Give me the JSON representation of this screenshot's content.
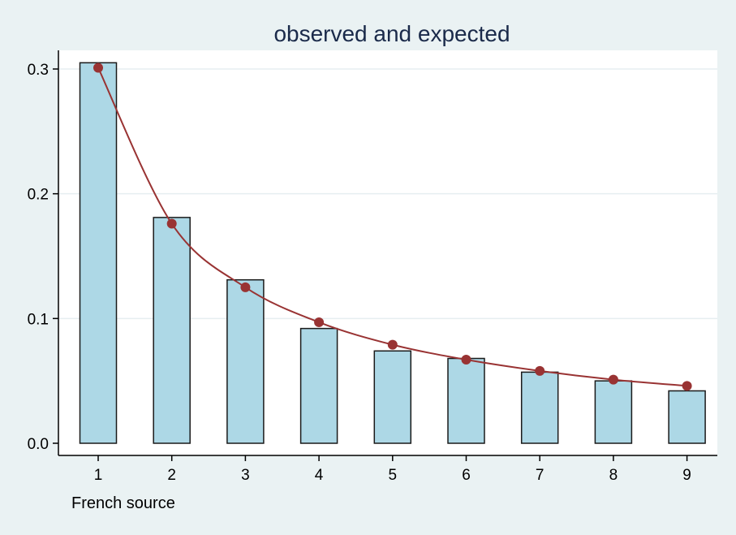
{
  "chart_data": {
    "type": "bar",
    "title": "observed and expected",
    "xlabel": "French source",
    "ylabel": "",
    "categories": [
      "1",
      "2",
      "3",
      "4",
      "5",
      "6",
      "7",
      "8",
      "9"
    ],
    "ylim": [
      0,
      0.3
    ],
    "y_ticks": [
      "0.0",
      "0.1",
      "0.2",
      "0.3"
    ],
    "grid": true,
    "legend": "none",
    "series": [
      {
        "type": "bar",
        "values": [
          0.305,
          0.181,
          0.131,
          0.092,
          0.074,
          0.068,
          0.057,
          0.05,
          0.042
        ],
        "color": "#add8e6"
      },
      {
        "type": "line",
        "values": [
          0.301,
          0.176,
          0.125,
          0.097,
          0.079,
          0.067,
          0.058,
          0.051,
          0.046
        ],
        "color": "#993333"
      }
    ]
  }
}
